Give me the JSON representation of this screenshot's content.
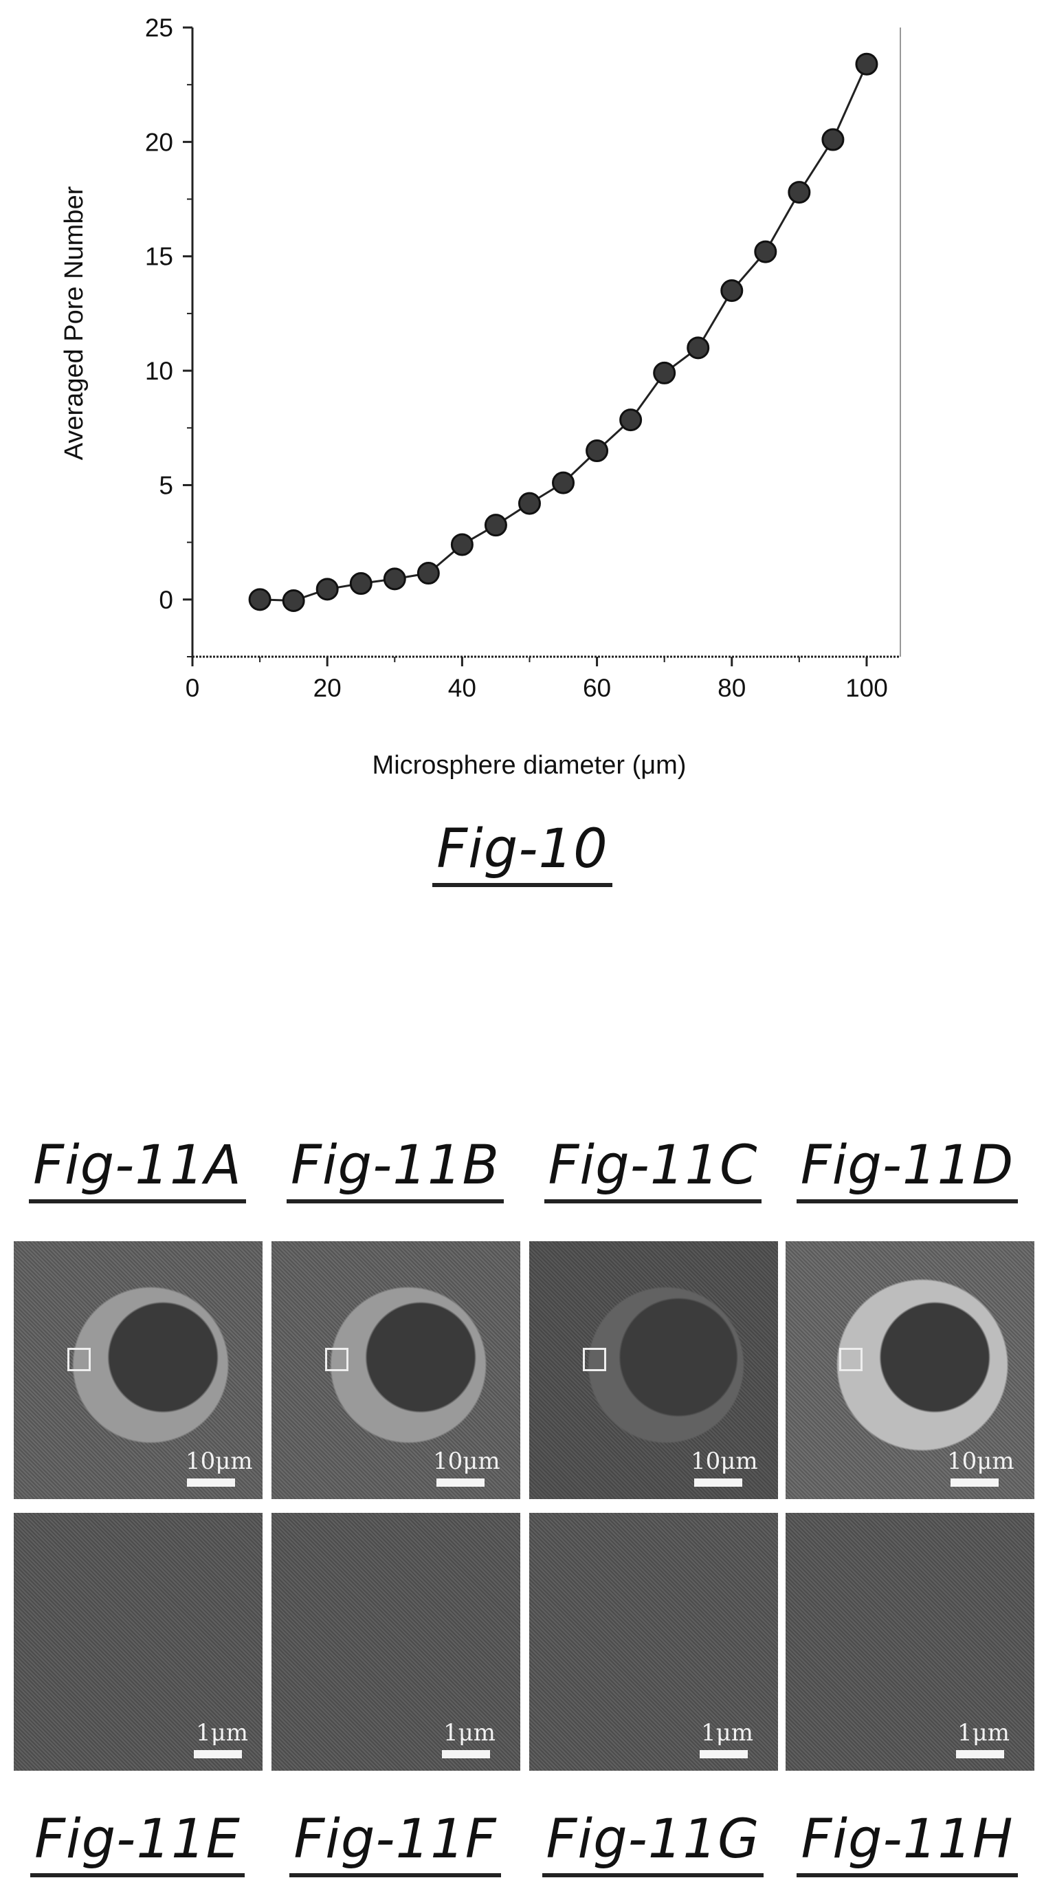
{
  "chart_data": {
    "type": "line",
    "xlabel": "Microsphere diameter (μm)",
    "ylabel": "Averaged Pore Number",
    "xlim": [
      0,
      105
    ],
    "ylim": [
      -2.5,
      25
    ],
    "xticks": [
      0,
      20,
      40,
      60,
      80,
      100
    ],
    "yticks": [
      0,
      5,
      10,
      15,
      20,
      25
    ],
    "grid": false,
    "marker": "circle",
    "series": [
      {
        "x": [
          10,
          15,
          20,
          25,
          30,
          35,
          40,
          45,
          50,
          55,
          60,
          65,
          70,
          75,
          80,
          85,
          90,
          95,
          100
        ],
        "y": [
          0.0,
          -0.05,
          0.45,
          0.7,
          0.9,
          1.15,
          2.4,
          3.25,
          4.2,
          5.1,
          6.5,
          7.85,
          9.9,
          11.0,
          13.5,
          15.2,
          17.8,
          20.1,
          23.4
        ]
      }
    ]
  },
  "figures": {
    "fig10": "Fig-10",
    "fig11_top": [
      "Fig-11A",
      "Fig-11B",
      "Fig-11C",
      "Fig-11D"
    ],
    "fig11_bottom": [
      "Fig-11E",
      "Fig-11F",
      "Fig-11G",
      "Fig-11H"
    ]
  },
  "scale_bars": {
    "top": "10μm",
    "bottom": "1μm"
  }
}
